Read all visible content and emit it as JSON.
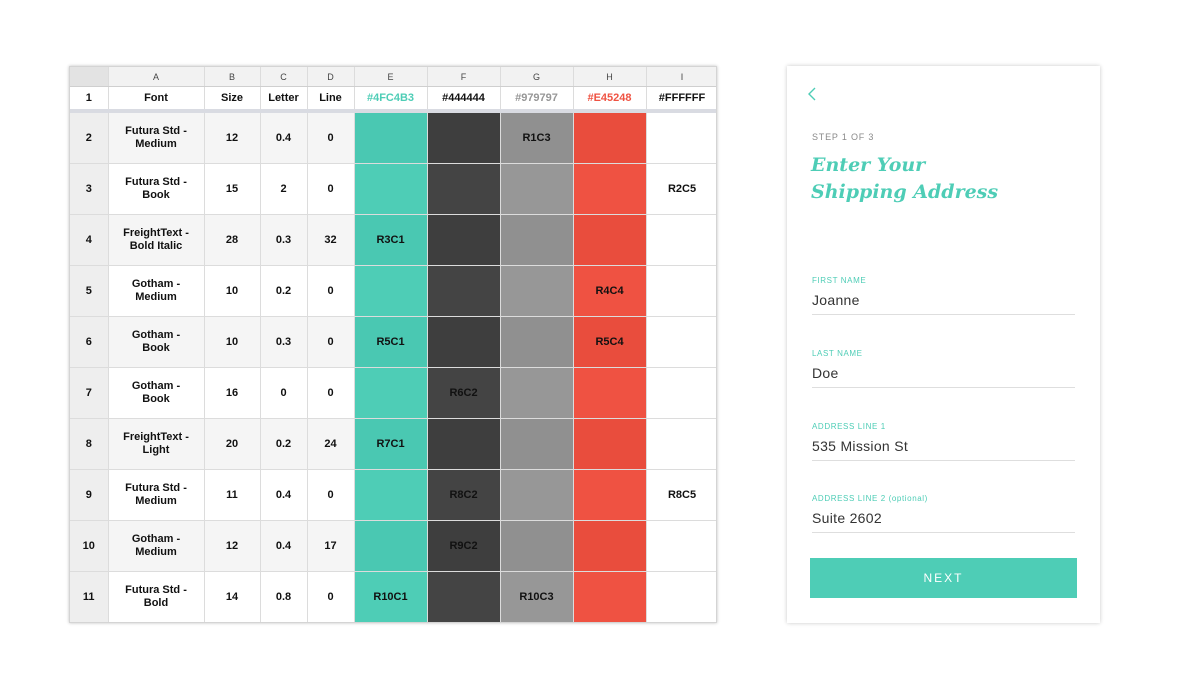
{
  "sheet": {
    "column_letters": [
      "A",
      "B",
      "C",
      "D",
      "E",
      "F",
      "G",
      "H",
      "I"
    ],
    "headers": [
      "Font",
      "Size",
      "Letter",
      "Line",
      "#4FC4B3",
      "#444444",
      "#979797",
      "#E45248",
      "#FFFFFF"
    ],
    "header_colors": {
      "E": "#4ecdb6",
      "G": "#979797",
      "H": "#ef5242"
    },
    "rows": [
      {
        "num": "2",
        "font": "Futura Std - Medium",
        "size": "12",
        "letter": "0.4",
        "line": "0",
        "e": "",
        "f": "",
        "g": "R1C3",
        "h": "",
        "i": ""
      },
      {
        "num": "3",
        "font": "Futura Std - Book",
        "size": "15",
        "letter": "2",
        "line": "0",
        "e": "",
        "f": "",
        "g": "",
        "h": "",
        "i": "R2C5"
      },
      {
        "num": "4",
        "font": "FreightText - Bold Italic",
        "size": "28",
        "letter": "0.3",
        "line": "32",
        "e": "R3C1",
        "f": "",
        "g": "",
        "h": "",
        "i": ""
      },
      {
        "num": "5",
        "font": "Gotham - Medium",
        "size": "10",
        "letter": "0.2",
        "line": "0",
        "e": "",
        "f": "",
        "g": "",
        "h": "R4C4",
        "i": ""
      },
      {
        "num": "6",
        "font": "Gotham - Book",
        "size": "10",
        "letter": "0.3",
        "line": "0",
        "e": "R5C1",
        "f": "",
        "g": "",
        "h": "R5C4",
        "i": ""
      },
      {
        "num": "7",
        "font": "Gotham - Book",
        "size": "16",
        "letter": "0",
        "line": "0",
        "e": "",
        "f": "R6C2",
        "g": "",
        "h": "",
        "i": ""
      },
      {
        "num": "8",
        "font": "FreightText - Light",
        "size": "20",
        "letter": "0.2",
        "line": "24",
        "e": "R7C1",
        "f": "",
        "g": "",
        "h": "",
        "i": ""
      },
      {
        "num": "9",
        "font": "Futura Std - Medium",
        "size": "11",
        "letter": "0.4",
        "line": "0",
        "e": "",
        "f": "R8C2",
        "g": "",
        "h": "",
        "i": "R8C5"
      },
      {
        "num": "10",
        "font": "Gotham - Medium",
        "size": "12",
        "letter": "0.4",
        "line": "17",
        "e": "",
        "f": "R9C2",
        "g": "",
        "h": "",
        "i": ""
      },
      {
        "num": "11",
        "font": "Futura Std - Bold",
        "size": "14",
        "letter": "0.8",
        "line": "0",
        "e": "R10C1",
        "f": "",
        "g": "R10C3",
        "h": "",
        "i": ""
      }
    ]
  },
  "form": {
    "back_icon": "chevron-left-icon",
    "step": "STEP 1 OF 3",
    "title_line1": "Enter Your",
    "title_line2": "Shipping Address",
    "fields": [
      {
        "label": "FIRST NAME",
        "value": "Joanne"
      },
      {
        "label": "LAST NAME",
        "value": "Doe"
      },
      {
        "label": "ADDRESS LINE 1",
        "value": "535 Mission St"
      },
      {
        "label": "ADDRESS LINE 2 (optional)",
        "value": "Suite 2602"
      }
    ],
    "next_label": "NEXT"
  },
  "colors": {
    "teal": "#4ecdb6",
    "dark": "#444444",
    "gray": "#979797",
    "red": "#ef5242"
  }
}
